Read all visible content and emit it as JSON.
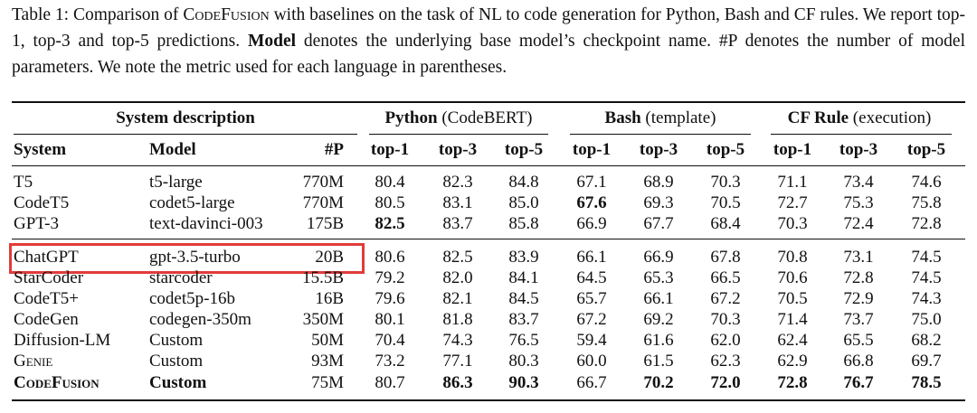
{
  "caption": {
    "parts": [
      "Table 1: Comparison of ",
      "CodeFusion",
      " with baselines on the task of NL to code generation for Python, Bash and CF rules. We report top-1, top-3 and top-5 predictions. ",
      "Model",
      " denotes the underlying base model’s checkpoint name. #P denotes the number of model parameters. We note the metric used for each language in parentheses."
    ]
  },
  "table": {
    "group_headers": [
      {
        "name": "System description"
      },
      {
        "name": "Python",
        "note": "(CodeBERT)"
      },
      {
        "name": "Bash",
        "note": "(template)"
      },
      {
        "name": "CF Rule",
        "note": "(execution)"
      }
    ],
    "columns": [
      "System",
      "Model",
      "#P",
      "top-1",
      "top-3",
      "top-5",
      "top-1",
      "top-3",
      "top-5",
      "top-1",
      "top-3",
      "top-5"
    ],
    "rows": [
      [
        "T5",
        "t5-large",
        "770M",
        "80.4",
        "82.3",
        "84.8",
        "67.1",
        "68.9",
        "70.3",
        "71.1",
        "73.4",
        "74.6"
      ],
      [
        "CodeT5",
        "codet5-large",
        "770M",
        "80.5",
        "83.1",
        "85.0",
        "67.6",
        "69.3",
        "70.5",
        "72.7",
        "75.3",
        "75.8"
      ],
      [
        "GPT-3",
        "text-davinci-003",
        "175B",
        "82.5",
        "83.7",
        "85.8",
        "66.9",
        "67.7",
        "68.4",
        "70.3",
        "72.4",
        "72.8"
      ],
      [
        "ChatGPT",
        "gpt-3.5-turbo",
        "20B",
        "80.6",
        "82.5",
        "83.9",
        "66.1",
        "66.9",
        "67.8",
        "70.8",
        "73.1",
        "74.5"
      ],
      [
        "StarCoder",
        "starcoder",
        "15.5B",
        "79.2",
        "82.0",
        "84.1",
        "64.5",
        "65.3",
        "66.5",
        "70.6",
        "72.8",
        "74.5"
      ],
      [
        "CodeT5+",
        "codet5p-16b",
        "16B",
        "79.6",
        "82.1",
        "84.5",
        "65.7",
        "66.1",
        "67.2",
        "70.5",
        "72.9",
        "74.3"
      ],
      [
        "CodeGen",
        "codegen-350m",
        "350M",
        "80.1",
        "81.8",
        "83.7",
        "67.2",
        "69.2",
        "70.3",
        "71.4",
        "73.7",
        "75.0"
      ],
      [
        "Diffusion-LM",
        "Custom",
        "50M",
        "70.4",
        "74.3",
        "76.5",
        "59.4",
        "61.6",
        "62.0",
        "62.4",
        "65.5",
        "68.2"
      ],
      [
        "Genie",
        "Custom",
        "93M",
        "73.2",
        "77.1",
        "80.3",
        "60.0",
        "61.5",
        "62.3",
        "62.9",
        "66.8",
        "69.7"
      ],
      [
        "CodeFusion",
        "Custom",
        "75M",
        "80.7",
        "86.3",
        "90.3",
        "66.7",
        "70.2",
        "72.0",
        "72.8",
        "76.7",
        "78.5"
      ]
    ]
  }
}
